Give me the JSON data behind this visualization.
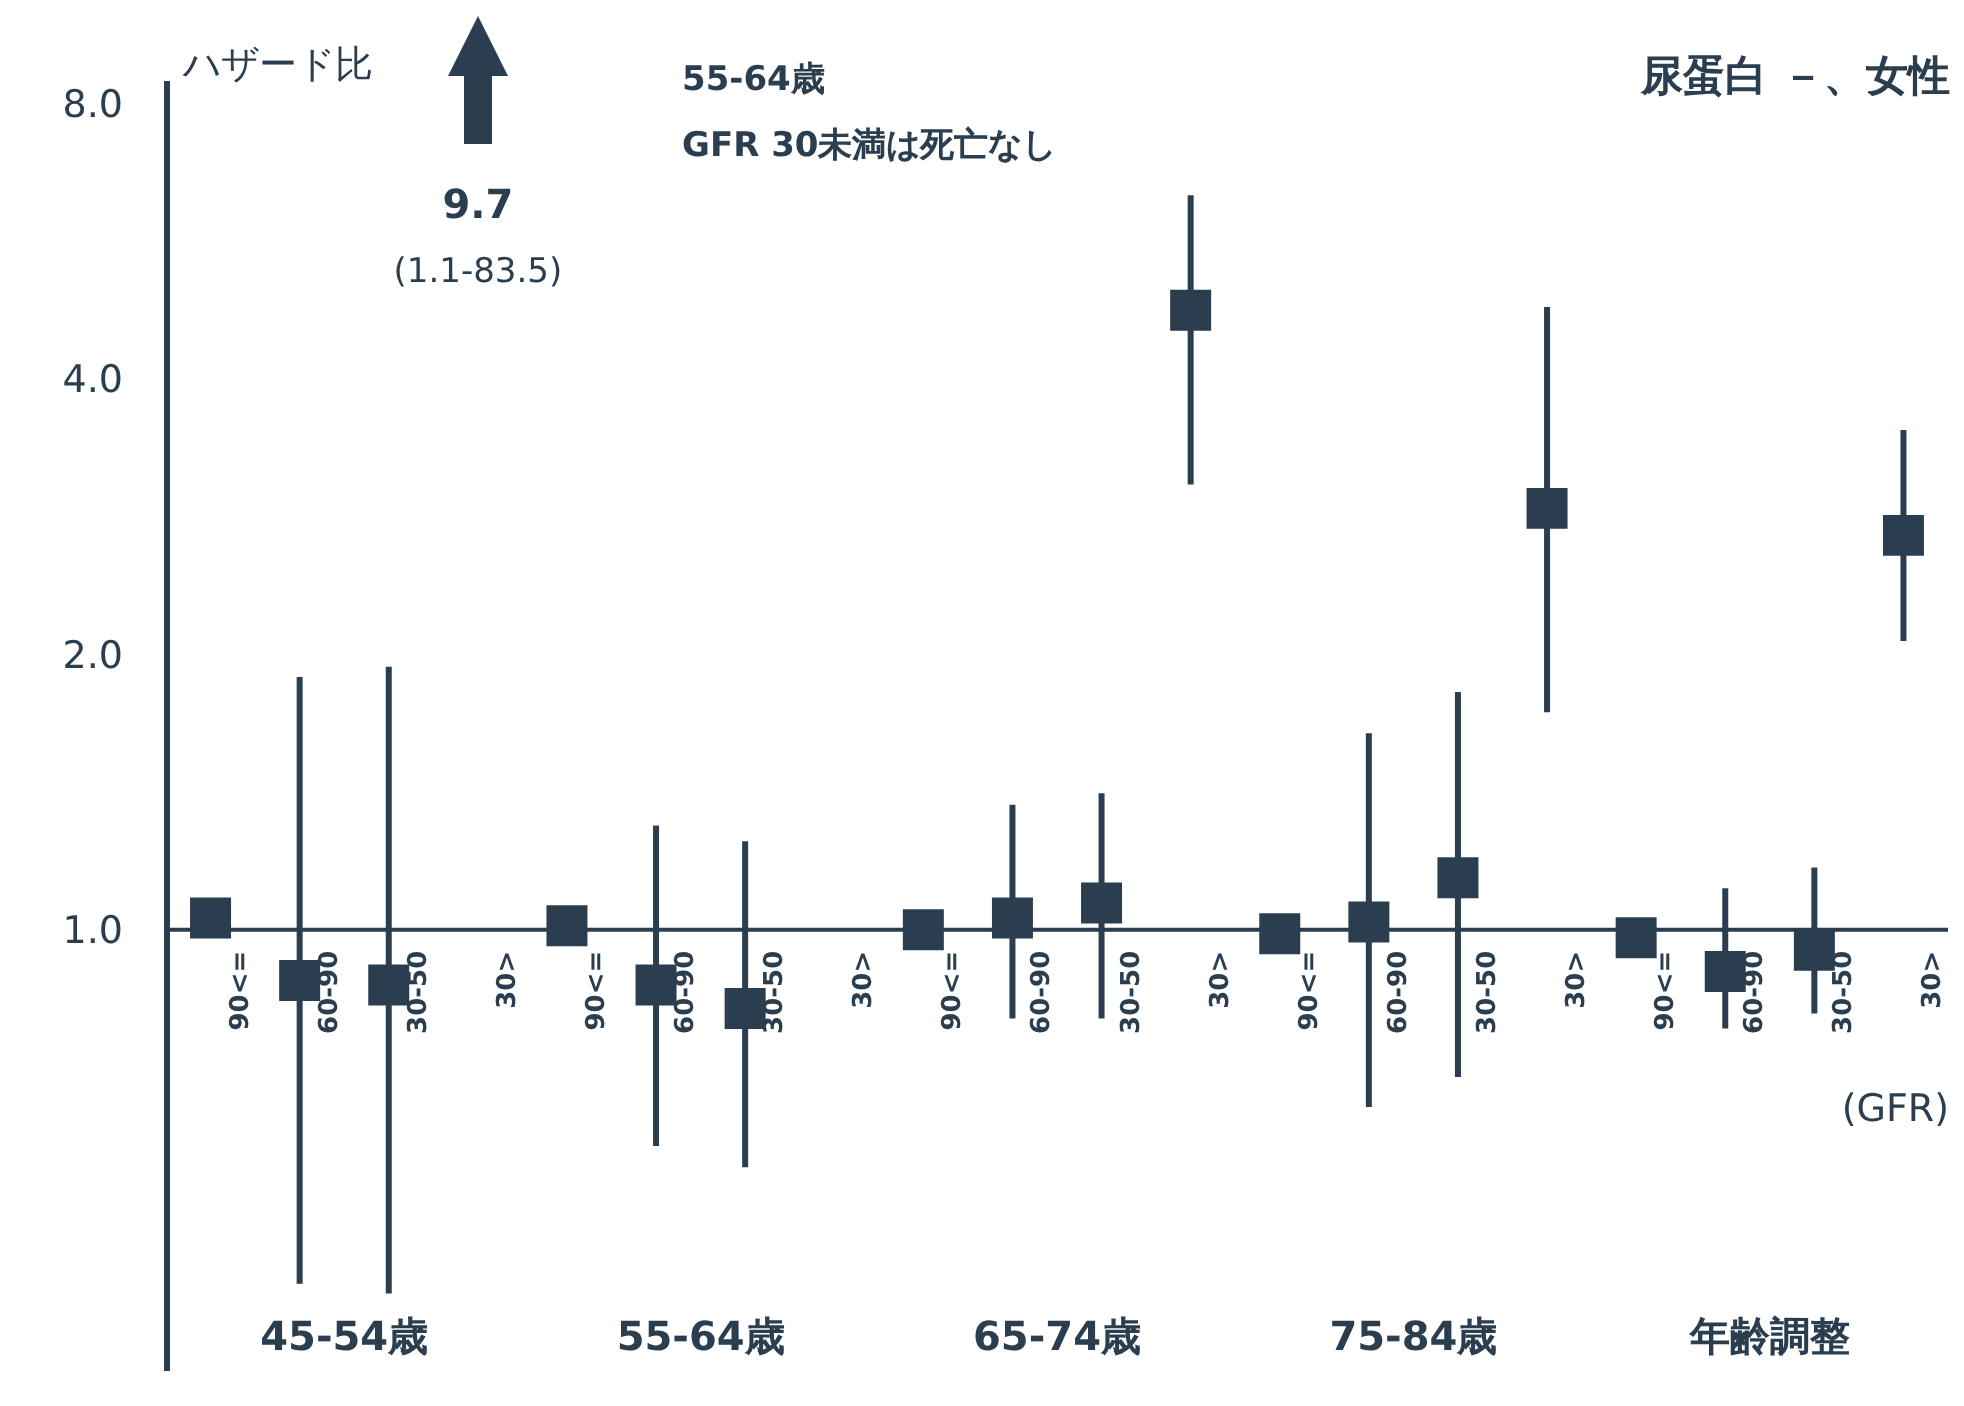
{
  "chart_data": {
    "type": "scatter",
    "title": "尿蛋白 －、女性",
    "ylabel": "ハザード比",
    "xlabel": "(GFR)",
    "categories": [
      "90<=",
      "60-90",
      "30-50",
      "30>",
      "90<=",
      "60-90",
      "30-50",
      "30>",
      "90<=",
      "60-90",
      "30-50",
      "30>",
      "90<=",
      "60-90",
      "30-50",
      "30>",
      "90<=",
      "60-90",
      "30-50",
      "30>"
    ],
    "series": [
      {
        "color": "#2b3e50",
        "values": [
          1.03,
          0.88,
          0.87,
          null,
          1.01,
          0.87,
          0.82,
          null,
          1.0,
          1.03,
          1.07,
          4.76,
          0.99,
          1.02,
          1.14,
          2.89,
          0.98,
          0.9,
          0.95,
          2.7
        ],
        "errors": [
          null,
          [
            0.41,
            1.89
          ],
          [
            0.4,
            1.94
          ],
          null,
          null,
          [
            0.58,
            1.3
          ],
          [
            0.55,
            1.25
          ],
          null,
          null,
          [
            0.8,
            1.37
          ],
          [
            0.8,
            1.41
          ],
          [
            3.07,
            6.36
          ],
          null,
          [
            0.64,
            1.64
          ],
          [
            0.69,
            1.82
          ],
          [
            1.73,
            4.8
          ],
          null,
          [
            0.78,
            1.11
          ],
          [
            0.81,
            1.17
          ],
          [
            2.07,
            3.52
          ]
        ]
      }
    ],
    "ylim": [
      0.33,
      8.5
    ],
    "yticks": [
      {
        "value": 1,
        "label": "1.0"
      },
      {
        "value": 2,
        "label": "2.0"
      },
      {
        "value": 4,
        "label": "4.0"
      },
      {
        "value": 8,
        "label": "8.0"
      }
    ],
    "log": true,
    "marker": "square",
    "grid": false,
    "legend": false,
    "ref_lines": [
      {
        "axis": "y",
        "value": 1,
        "color": "#2b3e50"
      }
    ],
    "annotations": [
      "45-54歳",
      "55-64歳",
      "65-74歳",
      "75-84歳",
      "年齢調整",
      "55-64歳",
      "GFR 30未満は死亡なし",
      "9.7",
      "(1.1-83.5)"
    ]
  }
}
